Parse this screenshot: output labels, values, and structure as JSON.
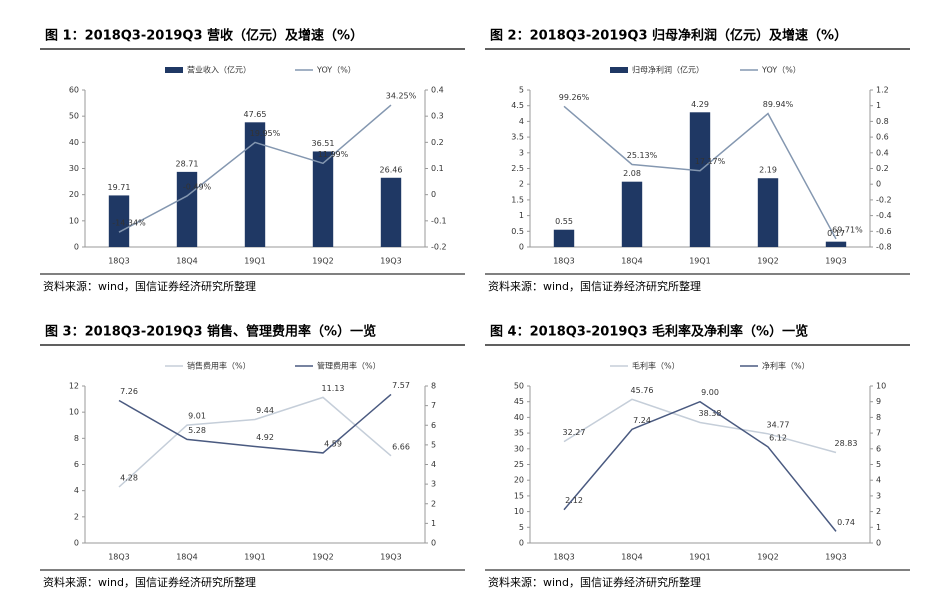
{
  "chart_data": [
    {
      "type": "bar",
      "title": "图 1：2018Q3-2019Q3 营收（亿元）及增速（%）",
      "source": "资料来源：wind，国信证券经济研究所整理",
      "categories": [
        "18Q3",
        "18Q4",
        "19Q1",
        "19Q2",
        "19Q3"
      ],
      "series": [
        {
          "name": "营业收入（亿元）",
          "type": "bar",
          "color": "#1f3864",
          "values": [
            19.71,
            28.71,
            47.65,
            36.51,
            26.46
          ]
        },
        {
          "name": "YOY（%）",
          "type": "line",
          "axis": "y2",
          "color": "#8497b0",
          "values": [
            -0.1434,
            -0.0049,
            0.1995,
            0.1199,
            0.3425
          ],
          "value_labels": [
            "-14.34%",
            "-0.49%",
            "19.95%",
            "11.99%",
            "34.25%"
          ]
        }
      ],
      "ylim": [
        0,
        60
      ],
      "yticks": [
        0,
        10,
        20,
        30,
        40,
        50,
        60
      ],
      "y2lim": [
        -0.2,
        0.4
      ],
      "y2ticks": [
        -0.2,
        -0.1,
        0,
        0.1,
        0.2,
        0.3,
        0.4
      ],
      "legend": "top"
    },
    {
      "type": "bar",
      "title": "图 2：2018Q3-2019Q3 归母净利润（亿元）及增速（%）",
      "source": "资料来源：wind，国信证券经济研究所整理",
      "categories": [
        "18Q3",
        "18Q4",
        "19Q1",
        "19Q2",
        "19Q3"
      ],
      "series": [
        {
          "name": "归母净利润（亿元）",
          "type": "bar",
          "color": "#1f3864",
          "values": [
            0.55,
            2.08,
            4.29,
            2.19,
            0.17
          ]
        },
        {
          "name": "YOY（%）",
          "type": "line",
          "axis": "y2",
          "color": "#8497b0",
          "values": [
            0.9926,
            0.2513,
            0.1717,
            0.8994,
            -0.6971
          ],
          "value_labels": [
            "99.26%",
            "25.13%",
            "17.17%",
            "89.94%",
            "-69.71%"
          ]
        }
      ],
      "ylim": [
        0,
        5
      ],
      "yticks": [
        0,
        0.5,
        1,
        1.5,
        2,
        2.5,
        3,
        3.5,
        4,
        4.5,
        5
      ],
      "y2lim": [
        -0.8,
        1.2
      ],
      "y2ticks": [
        -0.8,
        -0.6,
        -0.4,
        -0.2,
        0,
        0.2,
        0.4,
        0.6,
        0.8,
        1,
        1.2
      ],
      "legend": "top"
    },
    {
      "type": "line",
      "title": "图 3：2018Q3-2019Q3 销售、管理费用率（%）一览",
      "source": "资料来源：wind，国信证券经济研究所整理",
      "categories": [
        "18Q3",
        "18Q4",
        "19Q1",
        "19Q2",
        "19Q3"
      ],
      "series": [
        {
          "name": "销售费用率（%）",
          "type": "line",
          "color": "#c5ced9",
          "values": [
            4.28,
            9.01,
            9.44,
            11.13,
            6.66
          ]
        },
        {
          "name": "管理费用率（%）",
          "type": "line",
          "axis": "y2",
          "color": "#4a5a80",
          "values": [
            7.26,
            5.28,
            4.92,
            4.59,
            7.57
          ]
        }
      ],
      "ylim": [
        0,
        12
      ],
      "yticks": [
        0,
        2,
        4,
        6,
        8,
        10,
        12
      ],
      "y2lim": [
        0,
        8
      ],
      "y2ticks": [
        0,
        1,
        2,
        3,
        4,
        5,
        6,
        7,
        8
      ],
      "legend": "top"
    },
    {
      "type": "line",
      "title": "图 4：2018Q3-2019Q3 毛利率及净利率（%）一览",
      "source": "资料来源：wind，国信证券经济研究所整理",
      "categories": [
        "18Q3",
        "18Q4",
        "19Q1",
        "19Q2",
        "19Q3"
      ],
      "series": [
        {
          "name": "毛利率（%）",
          "type": "line",
          "color": "#c5ced9",
          "values": [
            32.27,
            45.76,
            38.38,
            34.77,
            28.83
          ]
        },
        {
          "name": "净利率（%）",
          "type": "line",
          "axis": "y2",
          "color": "#4a5a80",
          "values": [
            2.12,
            7.24,
            9,
            6.12,
            0.74
          ],
          "value_labels": [
            "2.12",
            "7.24",
            "9.00",
            "6.12",
            "0.74"
          ]
        }
      ],
      "ylim": [
        0,
        50
      ],
      "yticks": [
        0,
        5,
        10,
        15,
        20,
        25,
        30,
        35,
        40,
        45,
        50
      ],
      "y2lim": [
        0,
        10
      ],
      "y2ticks": [
        0,
        1,
        2,
        3,
        4,
        5,
        6,
        7,
        8,
        9,
        10
      ],
      "legend": "top"
    }
  ]
}
